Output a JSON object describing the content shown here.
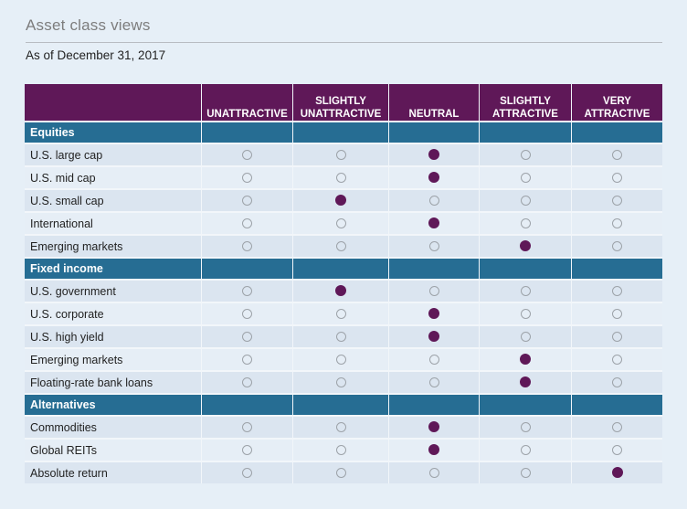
{
  "title": "Asset class views",
  "subtitle": "As of December 31, 2017",
  "columns": [
    "UNATTRACTIVE",
    "SLIGHTLY\nUNATTRACTIVE",
    "NEUTRAL",
    "SLIGHTLY\nATTRACTIVE",
    "VERY\nATTRACTIVE"
  ],
  "colors": {
    "header": "#5f1858",
    "section": "#266d93",
    "selected_dot": "#5f1858",
    "background": "#e6eff7"
  },
  "sections": [
    {
      "name": "Equities",
      "rows": [
        {
          "label": "U.S. large cap",
          "view": 2
        },
        {
          "label": "U.S. mid cap",
          "view": 2
        },
        {
          "label": "U.S. small cap",
          "view": 1
        },
        {
          "label": "International",
          "view": 2
        },
        {
          "label": "Emerging markets",
          "view": 3
        }
      ]
    },
    {
      "name": "Fixed income",
      "rows": [
        {
          "label": "U.S. government",
          "view": 1
        },
        {
          "label": "U.S. corporate",
          "view": 2
        },
        {
          "label": "U.S. high yield",
          "view": 2
        },
        {
          "label": "Emerging markets",
          "view": 3
        },
        {
          "label": "Floating-rate bank loans",
          "view": 3
        }
      ]
    },
    {
      "name": "Alternatives",
      "rows": [
        {
          "label": "Commodities",
          "view": 2
        },
        {
          "label": "Global REITs",
          "view": 2
        },
        {
          "label": "Absolute return",
          "view": 4
        }
      ]
    }
  ]
}
